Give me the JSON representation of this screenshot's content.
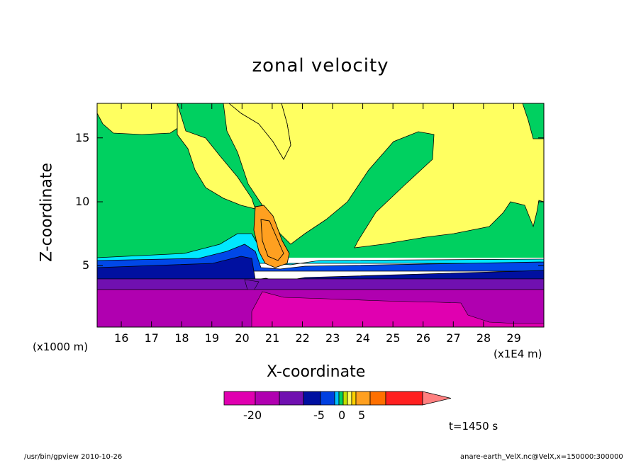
{
  "chart_data": {
    "type": "contour",
    "title": "zonal velocity",
    "xlabel": "X-coordinate",
    "ylabel": "Z-coordinate",
    "x_unit_left": "(x1000 m)",
    "x_unit_right": "(x1E4 m)",
    "xlim": [
      15.2,
      30
    ],
    "ylim": [
      0.2,
      17.7
    ],
    "x_ticks": [
      "16",
      "17",
      "18",
      "19",
      "20",
      "21",
      "22",
      "23",
      "24",
      "25",
      "26",
      "27",
      "28",
      "29"
    ],
    "y_ticks": [
      "5",
      "10",
      "15"
    ],
    "grid": false,
    "colorbar": {
      "tick_labels": [
        "-20",
        "-5",
        "0",
        "5"
      ],
      "colors": [
        "#e000b0",
        "#b000b0",
        "#7010b0",
        "#0010a0",
        "#0040e0",
        "#00c0ff",
        "#00d060",
        "#c0e000",
        "#ffff60",
        "#ffd000",
        "#ffa020",
        "#ff7000",
        "#ff2020",
        "#ff8080"
      ]
    },
    "time_label": "t=1450 s",
    "footer_left": "/usr/bin/gpview   2010-10-26",
    "footer_right": "anare-earth_VelX.nc@VelX,x=150000:300000"
  }
}
